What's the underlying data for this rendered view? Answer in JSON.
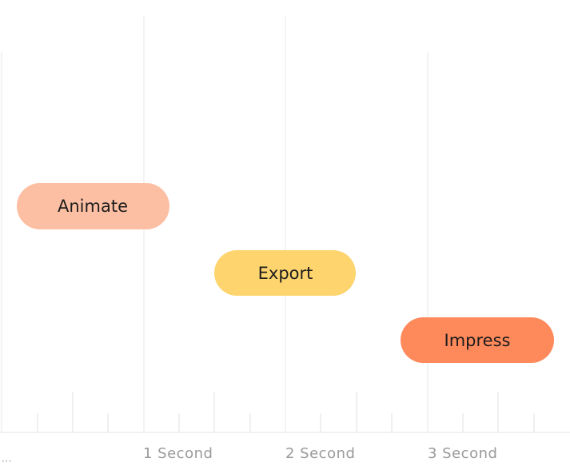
{
  "clips": [
    {
      "label": "Animate"
    },
    {
      "label": "Export"
    },
    {
      "label": "Impress"
    }
  ],
  "ruler": {
    "labels": [
      "1 Second",
      "2 Second",
      "3 Second"
    ],
    "start_label": "..."
  }
}
